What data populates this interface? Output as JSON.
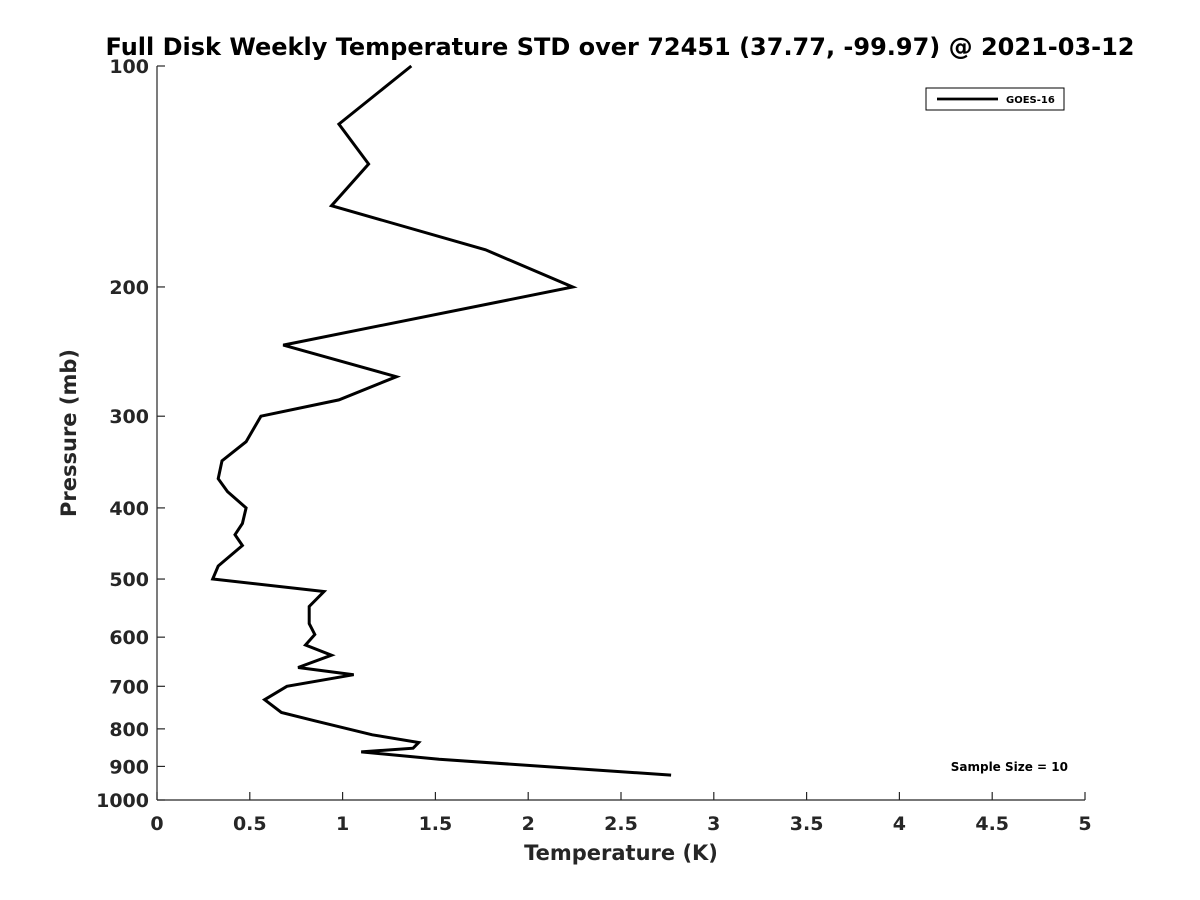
{
  "chart_data": {
    "type": "line",
    "title": "Full Disk Weekly Temperature STD over 72451 (37.77, -99.97) @ 2021-03-12",
    "xlabel": "Temperature (K)",
    "ylabel": "Pressure (mb)",
    "xlim": [
      0,
      5
    ],
    "ylim": [
      100,
      1000
    ],
    "y_scale": "log",
    "y_reversed": true,
    "x_ticks": [
      "0",
      "0.5",
      "1",
      "1.5",
      "2",
      "2.5",
      "3",
      "3.5",
      "4",
      "4.5",
      "5"
    ],
    "y_ticks": [
      "100",
      "200",
      "300",
      "400",
      "500",
      "600",
      "700",
      "800",
      "900",
      "1000"
    ],
    "grid": false,
    "legend_position": "top-right",
    "series": [
      {
        "name": "GOES-16",
        "color": "#000000",
        "x": [
          1.37,
          0.98,
          1.14,
          0.94,
          1.77,
          2.24,
          0.68,
          1.29,
          0.98,
          0.56,
          0.48,
          0.35,
          0.33,
          0.38,
          0.48,
          0.46,
          0.42,
          0.46,
          0.33,
          0.3,
          0.9,
          0.82,
          0.82,
          0.85,
          0.8,
          0.94,
          0.76,
          1.06,
          0.7,
          0.58,
          0.67,
          0.85,
          1.16,
          1.41,
          1.38,
          1.1,
          1.52,
          2.77
        ],
        "y": [
          100,
          120,
          136,
          155,
          178,
          200,
          240,
          265,
          285,
          300,
          325,
          345,
          365,
          380,
          400,
          420,
          435,
          450,
          480,
          500,
          520,
          545,
          575,
          595,
          615,
          635,
          660,
          675,
          700,
          730,
          760,
          780,
          815,
          835,
          850,
          860,
          880,
          925
        ]
      }
    ],
    "annotation": "Sample Size = 10"
  }
}
